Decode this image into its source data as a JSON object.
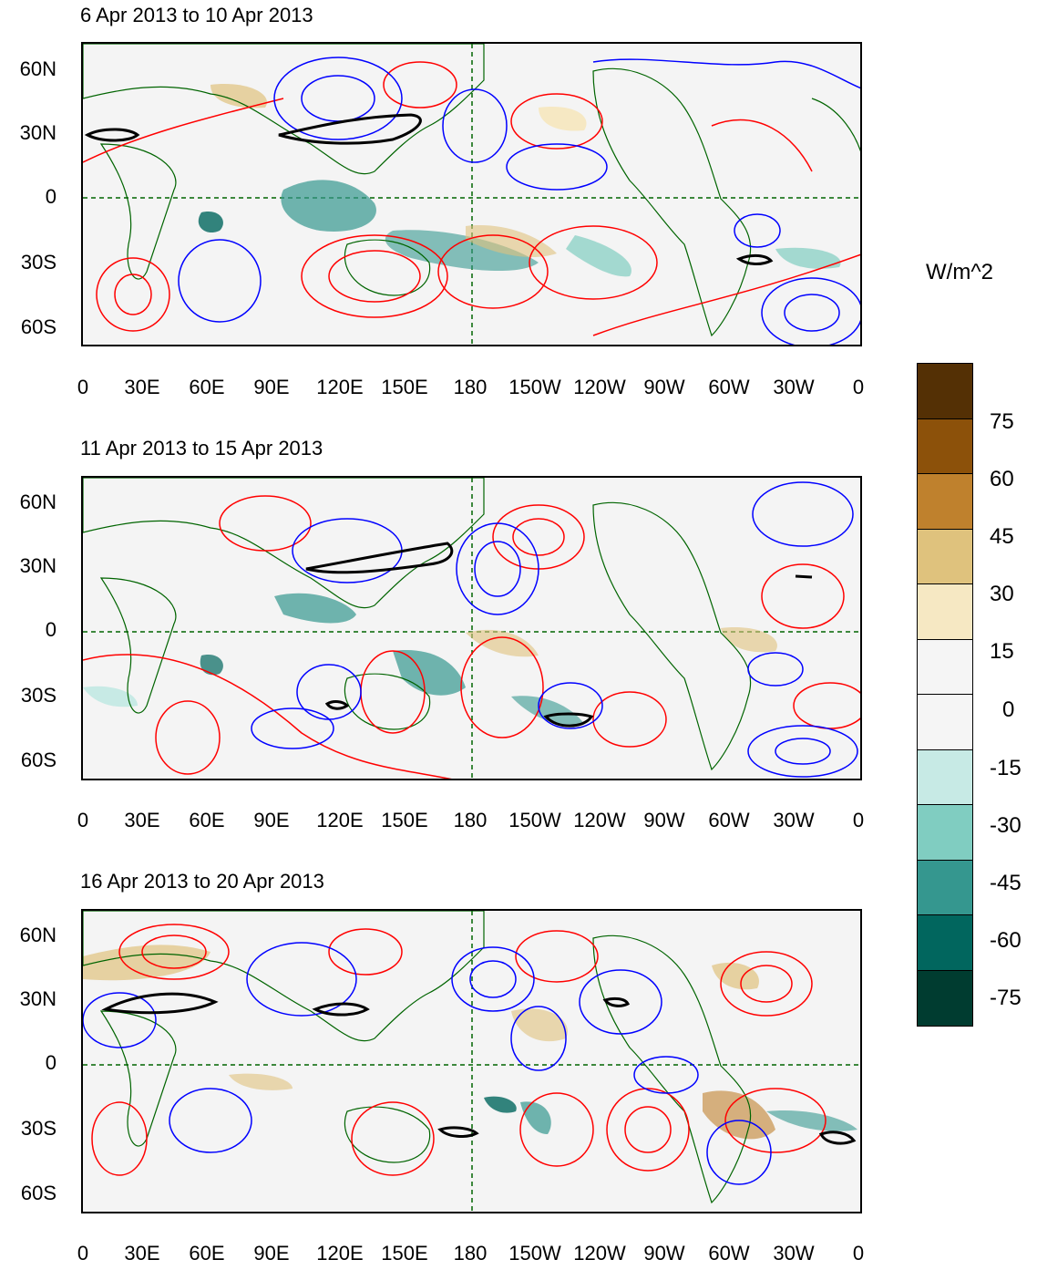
{
  "units_label": "W/m^2",
  "panels": [
    {
      "title": "6 Apr 2013 to 10 Apr 2013"
    },
    {
      "title": "11 Apr 2013 to 15 Apr 2013"
    },
    {
      "title": "16 Apr 2013 to 20 Apr 2013"
    }
  ],
  "lat_labels": [
    "60N",
    "30N",
    "0",
    "30S",
    "60S"
  ],
  "lon_labels": [
    "0",
    "30E",
    "60E",
    "90E",
    "120E",
    "150E",
    "180",
    "150W",
    "120W",
    "90W",
    "60W",
    "30W",
    "0"
  ],
  "colorbar": {
    "labels": [
      "75",
      "60",
      "45",
      "30",
      "15",
      "0",
      "-15",
      "-30",
      "-45",
      "-60",
      "-75"
    ],
    "colors": [
      "#543005",
      "#8c510a",
      "#bf812d",
      "#dfc27d",
      "#f6e8c3",
      "#f5f5f5",
      "#f5f5f5",
      "#c7eae5",
      "#80cdc1",
      "#35978f",
      "#01665e",
      "#003c30"
    ]
  },
  "contour_colors": {
    "positive": "#ff0000",
    "negative": "#0000ff",
    "threshold": "#000000",
    "coastline": "#006400"
  }
}
